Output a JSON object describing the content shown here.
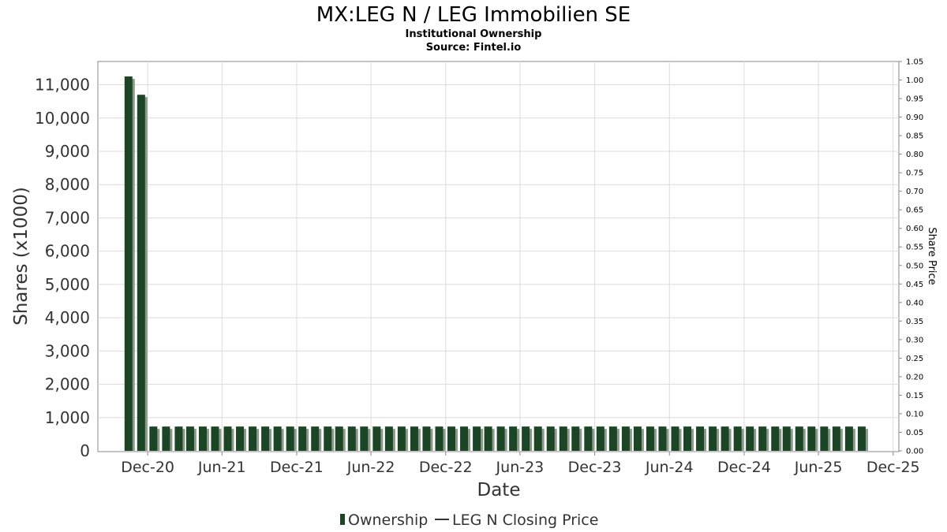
{
  "chart_data": {
    "type": "bar",
    "title": "MX:LEG N / LEG Immobilien SE",
    "subtitle_1": "Institutional Ownership",
    "subtitle_2": "Source: Fintel.io",
    "xlabel": "Date",
    "ylabel": "Shares (x1000)",
    "y2label": "Share Price",
    "ylim": [
      0,
      11700
    ],
    "y2lim": [
      0,
      1.05
    ],
    "y_ticks": [
      "0",
      "1,000",
      "2,000",
      "3,000",
      "4,000",
      "5,000",
      "6,000",
      "7,000",
      "8,000",
      "9,000",
      "10,000",
      "11,000"
    ],
    "y_tick_values": [
      0,
      1000,
      2000,
      3000,
      4000,
      5000,
      6000,
      7000,
      8000,
      9000,
      10000,
      11000
    ],
    "y2_ticks": [
      "0.00",
      "0.05",
      "0.10",
      "0.15",
      "0.20",
      "0.25",
      "0.30",
      "0.35",
      "0.40",
      "0.45",
      "0.50",
      "0.55",
      "0.60",
      "0.65",
      "0.70",
      "0.75",
      "0.80",
      "0.85",
      "0.90",
      "0.95",
      "1.00",
      "1.05"
    ],
    "y2_tick_values": [
      0,
      0.05,
      0.1,
      0.15,
      0.2,
      0.25,
      0.3,
      0.35,
      0.4,
      0.45,
      0.5,
      0.55,
      0.6,
      0.65,
      0.7,
      0.75,
      0.8,
      0.85,
      0.9,
      0.95,
      1.0,
      1.05
    ],
    "x_ticks": [
      "Dec-20",
      "Jun-21",
      "Dec-21",
      "Jun-22",
      "Dec-22",
      "Jun-23",
      "Dec-23",
      "Jun-24",
      "Dec-24",
      "Jun-25",
      "Dec-25"
    ],
    "x_tick_dates": [
      "2020-12-01",
      "2021-06-01",
      "2021-12-01",
      "2022-06-01",
      "2022-12-01",
      "2023-06-01",
      "2023-12-01",
      "2024-06-01",
      "2024-12-01",
      "2025-06-01",
      "2025-12-01"
    ],
    "x_range": [
      "2020-08-01",
      "2025-12-15"
    ],
    "grid": true,
    "legend_position": "bottom",
    "series": [
      {
        "name": "Ownership",
        "type": "bar",
        "color": "#1b4524",
        "shadow_color": "#8a9a8a",
        "points": [
          {
            "x": "2020-10-15",
            "y": 11250
          },
          {
            "x": "2020-11-15",
            "y": 10700
          },
          {
            "x": "2020-12-15",
            "y": 730
          },
          {
            "x": "2021-01-15",
            "y": 730
          },
          {
            "x": "2021-02-15",
            "y": 730
          },
          {
            "x": "2021-03-15",
            "y": 730
          },
          {
            "x": "2021-04-15",
            "y": 730
          },
          {
            "x": "2021-05-15",
            "y": 730
          },
          {
            "x": "2021-06-15",
            "y": 730
          },
          {
            "x": "2021-07-15",
            "y": 730
          },
          {
            "x": "2021-08-15",
            "y": 730
          },
          {
            "x": "2021-09-15",
            "y": 730
          },
          {
            "x": "2021-10-15",
            "y": 730
          },
          {
            "x": "2021-11-15",
            "y": 730
          },
          {
            "x": "2021-12-15",
            "y": 730
          },
          {
            "x": "2022-01-15",
            "y": 730
          },
          {
            "x": "2022-02-15",
            "y": 730
          },
          {
            "x": "2022-03-15",
            "y": 730
          },
          {
            "x": "2022-04-15",
            "y": 730
          },
          {
            "x": "2022-05-15",
            "y": 730
          },
          {
            "x": "2022-06-15",
            "y": 730
          },
          {
            "x": "2022-07-15",
            "y": 730
          },
          {
            "x": "2022-08-15",
            "y": 730
          },
          {
            "x": "2022-09-15",
            "y": 730
          },
          {
            "x": "2022-10-15",
            "y": 730
          },
          {
            "x": "2022-11-15",
            "y": 730
          },
          {
            "x": "2022-12-15",
            "y": 730
          },
          {
            "x": "2023-01-15",
            "y": 730
          },
          {
            "x": "2023-02-15",
            "y": 730
          },
          {
            "x": "2023-03-15",
            "y": 730
          },
          {
            "x": "2023-04-15",
            "y": 730
          },
          {
            "x": "2023-05-15",
            "y": 730
          },
          {
            "x": "2023-06-15",
            "y": 730
          },
          {
            "x": "2023-07-15",
            "y": 730
          },
          {
            "x": "2023-08-15",
            "y": 730
          },
          {
            "x": "2023-09-15",
            "y": 730
          },
          {
            "x": "2023-10-15",
            "y": 730
          },
          {
            "x": "2023-11-15",
            "y": 730
          },
          {
            "x": "2023-12-15",
            "y": 730
          },
          {
            "x": "2024-01-15",
            "y": 730
          },
          {
            "x": "2024-02-15",
            "y": 730
          },
          {
            "x": "2024-03-15",
            "y": 730
          },
          {
            "x": "2024-04-15",
            "y": 730
          },
          {
            "x": "2024-05-15",
            "y": 730
          },
          {
            "x": "2024-06-15",
            "y": 730
          },
          {
            "x": "2024-07-15",
            "y": 730
          },
          {
            "x": "2024-08-15",
            "y": 730
          },
          {
            "x": "2024-09-15",
            "y": 730
          },
          {
            "x": "2024-10-15",
            "y": 730
          },
          {
            "x": "2024-11-15",
            "y": 730
          },
          {
            "x": "2024-12-15",
            "y": 730
          },
          {
            "x": "2025-01-15",
            "y": 730
          },
          {
            "x": "2025-02-15",
            "y": 730
          },
          {
            "x": "2025-03-15",
            "y": 730
          },
          {
            "x": "2025-04-15",
            "y": 730
          },
          {
            "x": "2025-05-15",
            "y": 730
          },
          {
            "x": "2025-06-15",
            "y": 730
          },
          {
            "x": "2025-07-15",
            "y": 730
          },
          {
            "x": "2025-08-15",
            "y": 730
          },
          {
            "x": "2025-09-15",
            "y": 730
          }
        ]
      },
      {
        "name": "LEG N Closing Price",
        "type": "line",
        "color": "#333333",
        "points": []
      }
    ]
  },
  "colors": {
    "plot_background": "#ffffff",
    "grid": "#dcdcdc",
    "axis": "#888888"
  }
}
